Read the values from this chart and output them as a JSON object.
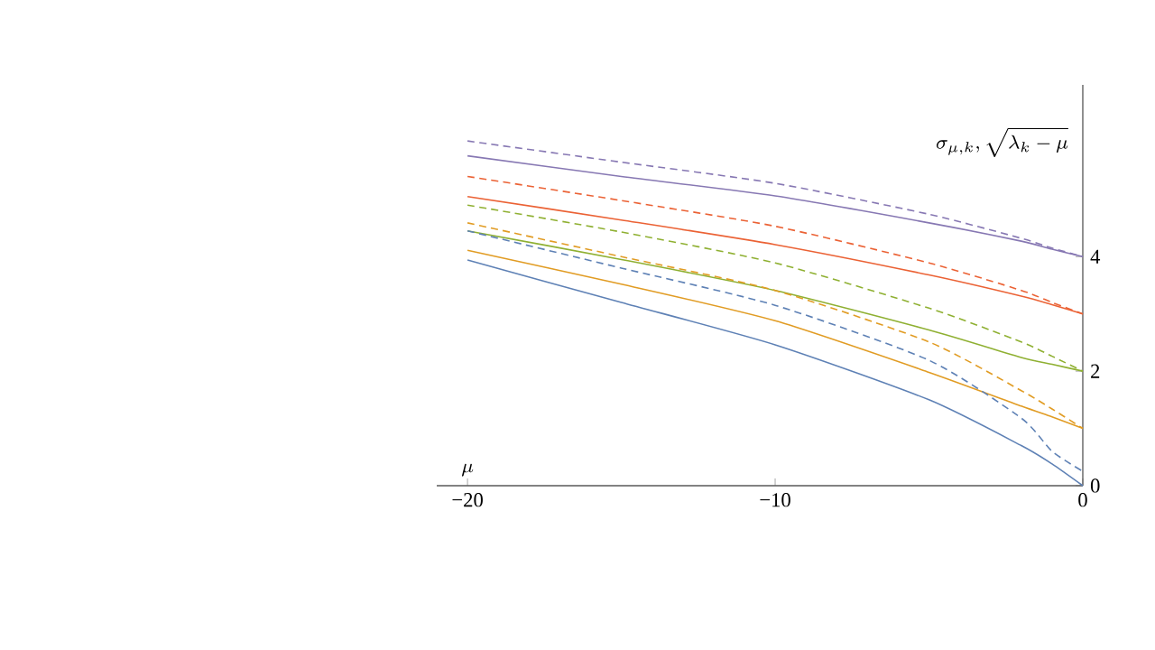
{
  "chart_data": {
    "type": "line",
    "xlabel": "\\mu",
    "ylabel": "\\sigma_{\\mu,k},\\sqrt{\\lambda_k-\\mu}",
    "x": [
      -20,
      -15,
      -10,
      -5,
      -2,
      -1,
      0
    ],
    "xlim": [
      -21,
      0
    ],
    "ylim": [
      0,
      7
    ],
    "xticks": [
      {
        "value": -20,
        "label": "−20"
      },
      {
        "value": -10,
        "label": "−10"
      },
      0
    ],
    "yticks": [
      0,
      2,
      4
    ],
    "marker": "none",
    "series": [
      {
        "color": "#5e81b5",
        "line_style": "solid",
        "values": [
          3.94,
          3.2,
          2.46,
          1.5,
          0.7,
          0.38,
          0
        ]
      },
      {
        "color": "#e19c24",
        "line_style": "solid",
        "values": [
          4.11,
          3.52,
          2.88,
          1.98,
          1.39,
          1.2,
          1.0
        ]
      },
      {
        "color": "#8fb032",
        "line_style": "solid",
        "values": [
          4.45,
          3.95,
          3.41,
          2.72,
          2.24,
          2.12,
          2.0
        ]
      },
      {
        "color": "#eb6235",
        "line_style": "solid",
        "values": [
          5.05,
          4.64,
          4.21,
          3.68,
          3.31,
          3.16,
          3.0
        ]
      },
      {
        "color": "#8778b3",
        "line_style": "solid",
        "values": [
          5.76,
          5.4,
          5.06,
          4.59,
          4.27,
          4.13,
          4.0
        ]
      },
      {
        "color": "#5e81b5",
        "line_style": "dashed",
        "values": [
          4.45,
          3.8,
          3.15,
          2.19,
          1.18,
          0.6,
          0.25
        ]
      },
      {
        "color": "#e19c24",
        "line_style": "dashed",
        "values": [
          4.59,
          4.0,
          3.41,
          2.51,
          1.66,
          1.34,
          1.0
        ]
      },
      {
        "color": "#8fb032",
        "line_style": "dashed",
        "values": [
          4.9,
          4.43,
          3.89,
          3.1,
          2.51,
          2.26,
          2.0
        ]
      },
      {
        "color": "#eb6235",
        "line_style": "dashed",
        "values": [
          5.4,
          4.98,
          4.53,
          3.89,
          3.41,
          3.2,
          3.0
        ]
      },
      {
        "color": "#8778b3",
        "line_style": "dashed",
        "values": [
          6.02,
          5.65,
          5.28,
          4.74,
          4.32,
          4.15,
          4.0
        ]
      }
    ]
  }
}
